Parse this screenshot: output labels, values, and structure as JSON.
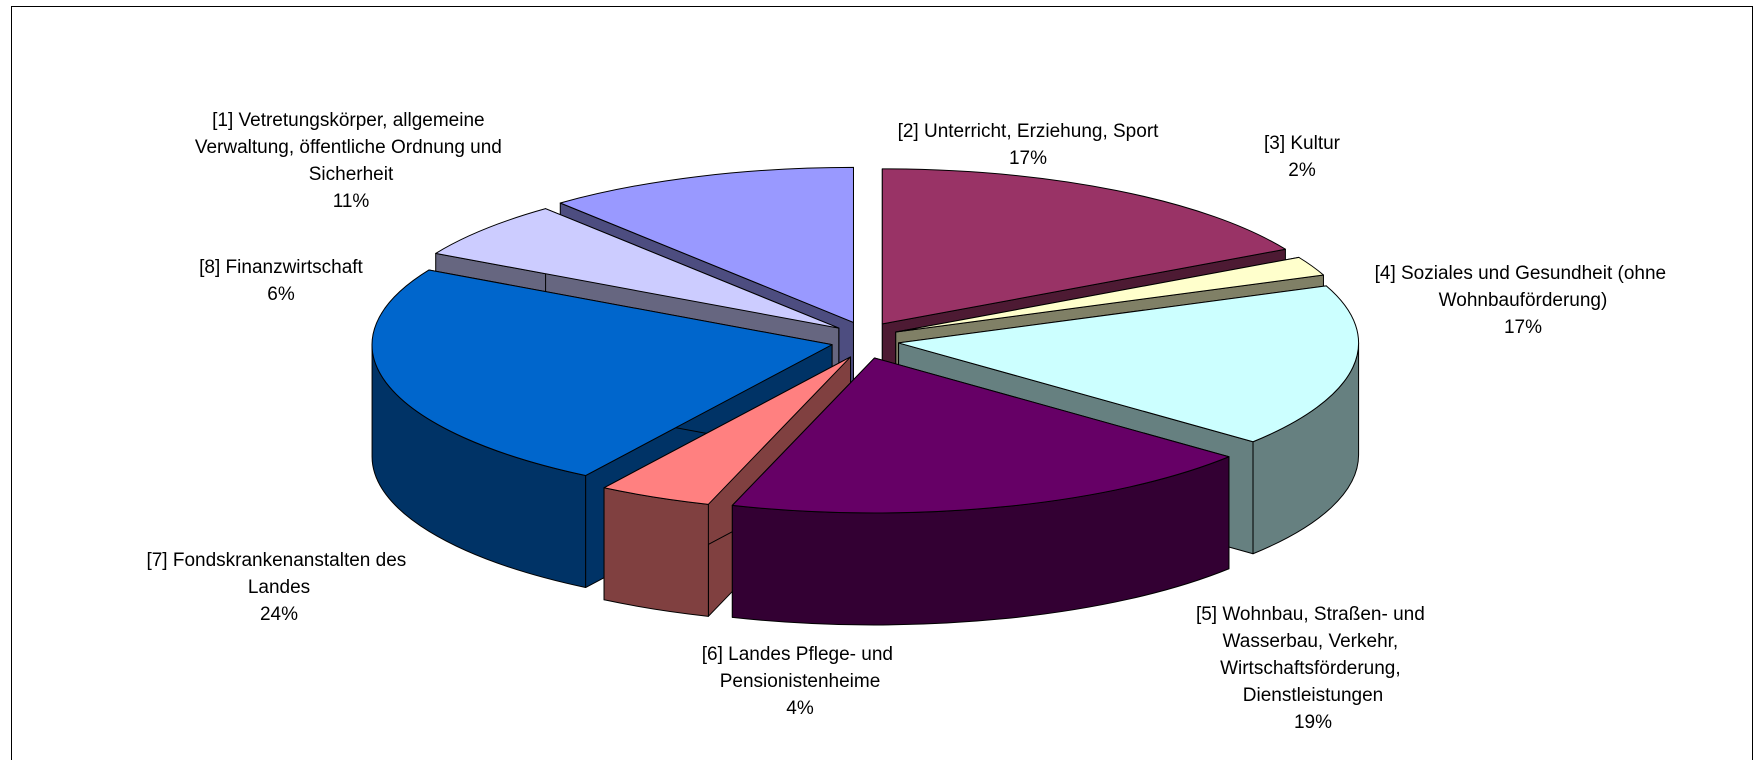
{
  "chart_data": {
    "type": "pie3d",
    "categories": [
      "[1] Vetretungskörper, allgemeine Verwaltung, öffentliche Ordnung und Sicherheit",
      "[2] Unterricht, Erziehung, Sport",
      "[3] Kultur",
      "[4] Soziales und Gesundheit (ohne Wohnbauförderung)",
      "[5] Wohnbau, Straßen- und Wasserbau, Verkehr, Wirtschaftsförderung, Dienstleistungen",
      "[6] Landes Pflege- und Pensionistenheime",
      "[7] Fondskrankenanstalten des Landes",
      "[8] Finanzwirtschaft"
    ],
    "values": [
      11,
      17,
      2,
      17,
      19,
      4,
      24,
      6
    ],
    "value_labels": [
      "11%",
      "17%",
      "2%",
      "17%",
      "19%",
      "4%",
      "24%",
      "6%"
    ],
    "colors": [
      "#9999ff",
      "#993366",
      "#ffffcc",
      "#ccffff",
      "#660066",
      "#ff8080",
      "#0066cc",
      "#ccccff"
    ]
  }
}
